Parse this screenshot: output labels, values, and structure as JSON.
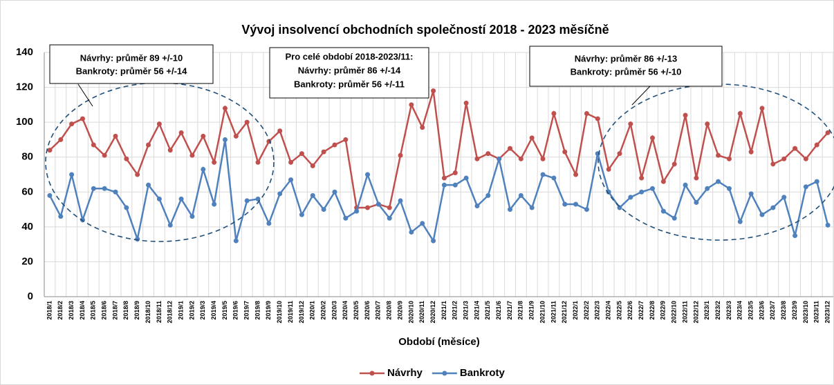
{
  "chart_data": {
    "type": "line",
    "title": "Vývoj insolvencí obchodních společností 2018 - 2023 měsíčně",
    "xlabel": "Období (měsíce)",
    "categories": [
      "2018/1",
      "2018/2",
      "2018/3",
      "2018/4",
      "2018/5",
      "2018/6",
      "2018/7",
      "2018/8",
      "2018/9",
      "2018/10",
      "2018/11",
      "2018/12",
      "2019/1",
      "2019/2",
      "2019/3",
      "2019/4",
      "2019/5",
      "2019/6",
      "2019/7",
      "2019/8",
      "2019/9",
      "2019/10",
      "2019/11",
      "2019/12",
      "2020/1",
      "2020/2",
      "2020/3",
      "2020/4",
      "2020/5",
      "2020/6",
      "2020/7",
      "2020/8",
      "2020/9",
      "2020/10",
      "2020/11",
      "2020/12",
      "2021/1",
      "2021/2",
      "2021/3",
      "2021/4",
      "2021/5",
      "2021/6",
      "2021/7",
      "2021/8",
      "2021/9",
      "2021/10",
      "2021/11",
      "2021/12",
      "2022/1",
      "2022/2",
      "2022/3",
      "2022/4",
      "2022/5",
      "2022/6",
      "2022/7",
      "2022/8",
      "2022/9",
      "2022/10",
      "2022/11",
      "2022/12",
      "2023/1",
      "2023/2",
      "2023/3",
      "2023/4",
      "2023/5",
      "2023/6",
      "2023/7",
      "2023/8",
      "2023/9",
      "2023/10",
      "2023/11",
      "2023/12"
    ],
    "series": [
      {
        "name": "Návrhy",
        "color": "#c0504d",
        "values": [
          84,
          90,
          99,
          102,
          87,
          81,
          92,
          79,
          70,
          87,
          99,
          84,
          94,
          81,
          92,
          77,
          108,
          92,
          100,
          77,
          89,
          95,
          77,
          82,
          75,
          83,
          87,
          90,
          51,
          51,
          53,
          51,
          81,
          110,
          97,
          118,
          68,
          71,
          111,
          79,
          82,
          79,
          85,
          79,
          91,
          79,
          105,
          83,
          70,
          105,
          102,
          73,
          82,
          99,
          68,
          91,
          66,
          76,
          104,
          68,
          99,
          81,
          79,
          105,
          83,
          108,
          76,
          79,
          85,
          79,
          87,
          94
        ]
      },
      {
        "name": "Bankroty",
        "color": "#4f81bd",
        "values": [
          58,
          46,
          70,
          44,
          62,
          62,
          60,
          51,
          33,
          64,
          56,
          41,
          56,
          46,
          73,
          53,
          90,
          32,
          55,
          56,
          42,
          59,
          67,
          47,
          58,
          50,
          60,
          45,
          49,
          70,
          53,
          45,
          55,
          37,
          42,
          32,
          64,
          64,
          68,
          52,
          58,
          79,
          50,
          58,
          51,
          70,
          68,
          53,
          53,
          50,
          82,
          60,
          51,
          57,
          60,
          62,
          49,
          45,
          64,
          54,
          62,
          66,
          62,
          43,
          59,
          47,
          51,
          57,
          35,
          63,
          66,
          41
        ]
      }
    ],
    "ylim": [
      0,
      140
    ],
    "yticks": [
      0,
      20,
      40,
      60,
      80,
      100,
      120,
      140
    ],
    "grid": true,
    "legend": "bottom",
    "annotations": [
      {
        "lines": [
          "Návrhy: průměr 89 +/-10",
          "Bankroty: průměr 56 +/-14"
        ]
      },
      {
        "lines": [
          "Pro celé období 2018-2023/11:",
          "Návrhy: průměr 86 +/-14",
          "Bankroty: průměr 56 +/-11"
        ]
      },
      {
        "lines": [
          "Návrhy: průměr 86 +/-13",
          "Bankroty: průměr 56 +/-10"
        ]
      }
    ]
  }
}
